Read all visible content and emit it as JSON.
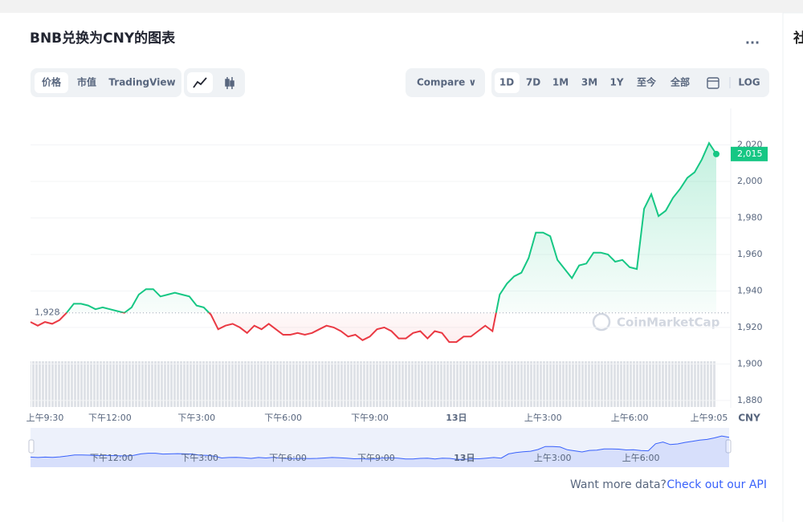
{
  "ui": {
    "title": "BNB兑换为CNY的图表",
    "more": "...",
    "side": "社",
    "tabs": [
      "价格",
      "市值",
      "TradingView"
    ],
    "compare": "Compare ∨",
    "ranges": [
      "1D",
      "7D",
      "1M",
      "3M",
      "1Y",
      "至今",
      "全部"
    ],
    "log": "LOG",
    "footer_text": "Want more data?",
    "footer_link": "Check out our API",
    "watermark": "CoinMarketCap"
  },
  "chart_data": {
    "type": "line",
    "color_up": "#16c784",
    "color_down": "#ea3943",
    "nav_color": "#3861fb",
    "categories": [
      null,
      null,
      "上午9:30",
      null,
      null,
      null,
      null,
      null,
      null,
      null,
      null,
      "下午12:00",
      null,
      null,
      null,
      null,
      null,
      null,
      null,
      null,
      null,
      null,
      null,
      "下午3:00",
      null,
      null,
      null,
      null,
      null,
      null,
      null,
      null,
      null,
      null,
      null,
      "下午6:00",
      null,
      null,
      null,
      null,
      null,
      null,
      null,
      null,
      null,
      null,
      null,
      "下午9:00",
      null,
      null,
      null,
      null,
      null,
      null,
      null,
      null,
      null,
      null,
      null,
      "13日",
      null,
      null,
      null,
      null,
      null,
      null,
      null,
      null,
      null,
      null,
      null,
      "上午3:00",
      null,
      null,
      null,
      null,
      null,
      null,
      null,
      null,
      null,
      null,
      null,
      "上午6:00",
      null,
      null,
      null,
      null,
      null,
      null,
      null,
      null,
      null,
      null,
      "上午9:05",
      null
    ],
    "values": [
      1923,
      1921,
      1923,
      1922,
      1924,
      1928,
      1933,
      1933,
      1932,
      1930,
      1931,
      1930,
      1929,
      1928,
      1931,
      1938,
      1941,
      1941,
      1937,
      1938,
      1939,
      1938,
      1937,
      1932,
      1931,
      1927,
      1919,
      1921,
      1922,
      1920,
      1917,
      1921,
      1919,
      1922,
      1919,
      1916,
      1916,
      1917,
      1916,
      1917,
      1919,
      1921,
      1920,
      1918,
      1915,
      1916,
      1913,
      1915,
      1919,
      1920,
      1918,
      1914,
      1914,
      1917,
      1918,
      1914,
      1918,
      1917,
      1912,
      1912,
      1915,
      1915,
      1918,
      1921,
      1918,
      1938,
      1944,
      1948,
      1950,
      1958,
      1972,
      1972,
      1970,
      1957,
      1952,
      1947,
      1954,
      1955,
      1961,
      1961,
      1960,
      1956,
      1957,
      1953,
      1952,
      1985,
      1993,
      1981,
      1984,
      1991,
      1996,
      2002,
      2005,
      2012,
      2021,
      2015
    ],
    "baseline": 1928,
    "baseline_label": "1,928",
    "last_label": "2,015",
    "currency": "CNY",
    "ylim": [
      1876,
      2040
    ],
    "yticks": [
      {
        "value": 1880,
        "label": "1,880"
      },
      {
        "value": 1900,
        "label": "1,900"
      },
      {
        "value": 1920,
        "label": "1,920"
      },
      {
        "value": 1940,
        "label": "1,940"
      },
      {
        "value": 1960,
        "label": "1,960"
      },
      {
        "value": 1980,
        "label": "1,980"
      },
      {
        "value": 2000,
        "label": "2,000"
      },
      {
        "value": 2020,
        "label": "2,020"
      }
    ],
    "grid": true
  }
}
